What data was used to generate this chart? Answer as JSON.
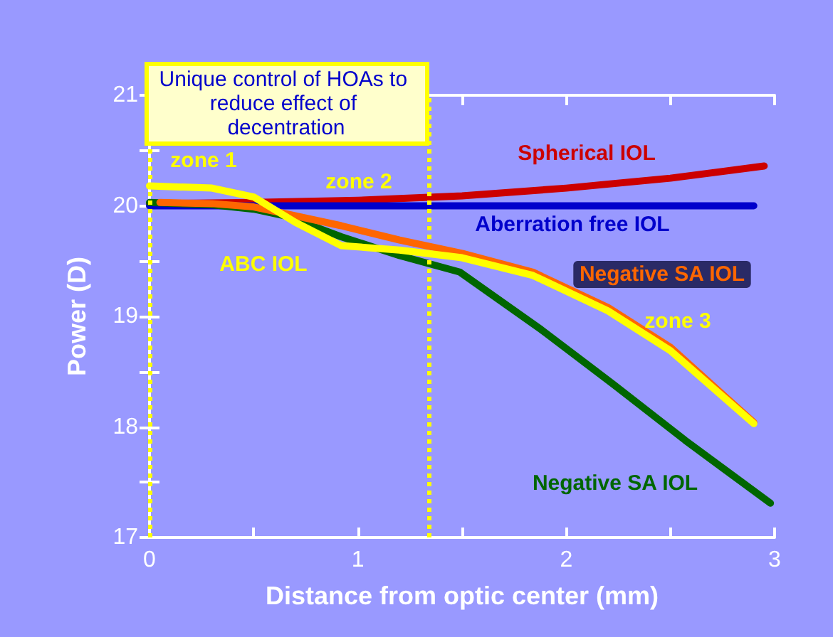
{
  "chart_data": {
    "type": "line",
    "xlabel": "Distance from optic center (mm)",
    "ylabel": "Power (D)",
    "xlim": [
      0,
      3
    ],
    "xticks": [
      0,
      1,
      2,
      3
    ],
    "ylim": [
      17,
      21
    ],
    "yticks": [
      17,
      18,
      19,
      20,
      21
    ],
    "grid": false,
    "legend": false,
    "marker": "none",
    "line_style": "solid",
    "series": [
      {
        "name": "Spherical IOL",
        "color": "#cc0000",
        "x": [
          0,
          0.5,
          1,
          1.5,
          2,
          2.5,
          2.95
        ],
        "values": [
          20.02,
          20.03,
          20.05,
          20.09,
          20.16,
          20.25,
          20.36
        ]
      },
      {
        "name": "Aberration free IOL",
        "color": "#0000cc",
        "x": [
          0,
          1,
          2,
          2.9
        ],
        "values": [
          20.0,
          20.0,
          20.0,
          20.0
        ]
      },
      {
        "name": "Negative SA IOL",
        "color": "#006600",
        "x": [
          0,
          0.3,
          0.5,
          0.65,
          0.92,
          1.2,
          1.49,
          1.88,
          2.23,
          2.57,
          2.98
        ],
        "values": [
          20.03,
          20.01,
          19.97,
          19.91,
          19.72,
          19.55,
          19.4,
          18.88,
          18.38,
          17.88,
          17.31
        ]
      },
      {
        "name": "Negative SA IOL",
        "color": "#ff6600",
        "x": [
          0.05,
          0.3,
          0.5,
          0.65,
          0.92,
          1.2,
          1.5,
          1.84,
          2.2,
          2.5,
          2.9
        ],
        "values": [
          20.03,
          20.02,
          19.99,
          19.93,
          19.82,
          19.69,
          19.57,
          19.4,
          19.08,
          18.72,
          18.04
        ]
      },
      {
        "name": "ABC IOL",
        "color": "#ffff00",
        "x": [
          0,
          0.3,
          0.5,
          0.7,
          0.92,
          1.2,
          1.5,
          1.84,
          2.2,
          2.5,
          2.9
        ],
        "values": [
          20.18,
          20.16,
          20.08,
          19.85,
          19.64,
          19.6,
          19.53,
          19.37,
          19.05,
          18.69,
          18.03
        ]
      }
    ],
    "ref_lines": [
      {
        "axis": "x",
        "value": 0,
        "color": "#ffff00",
        "line_style": "dotted"
      },
      {
        "axis": "x",
        "value": 1.34,
        "color": "#ffff00",
        "line_style": "dotted"
      }
    ],
    "annotations": [
      "Unique control of HOAs to reduce effect of decentration",
      "zone 1",
      "zone 2",
      "zone 3"
    ]
  }
}
